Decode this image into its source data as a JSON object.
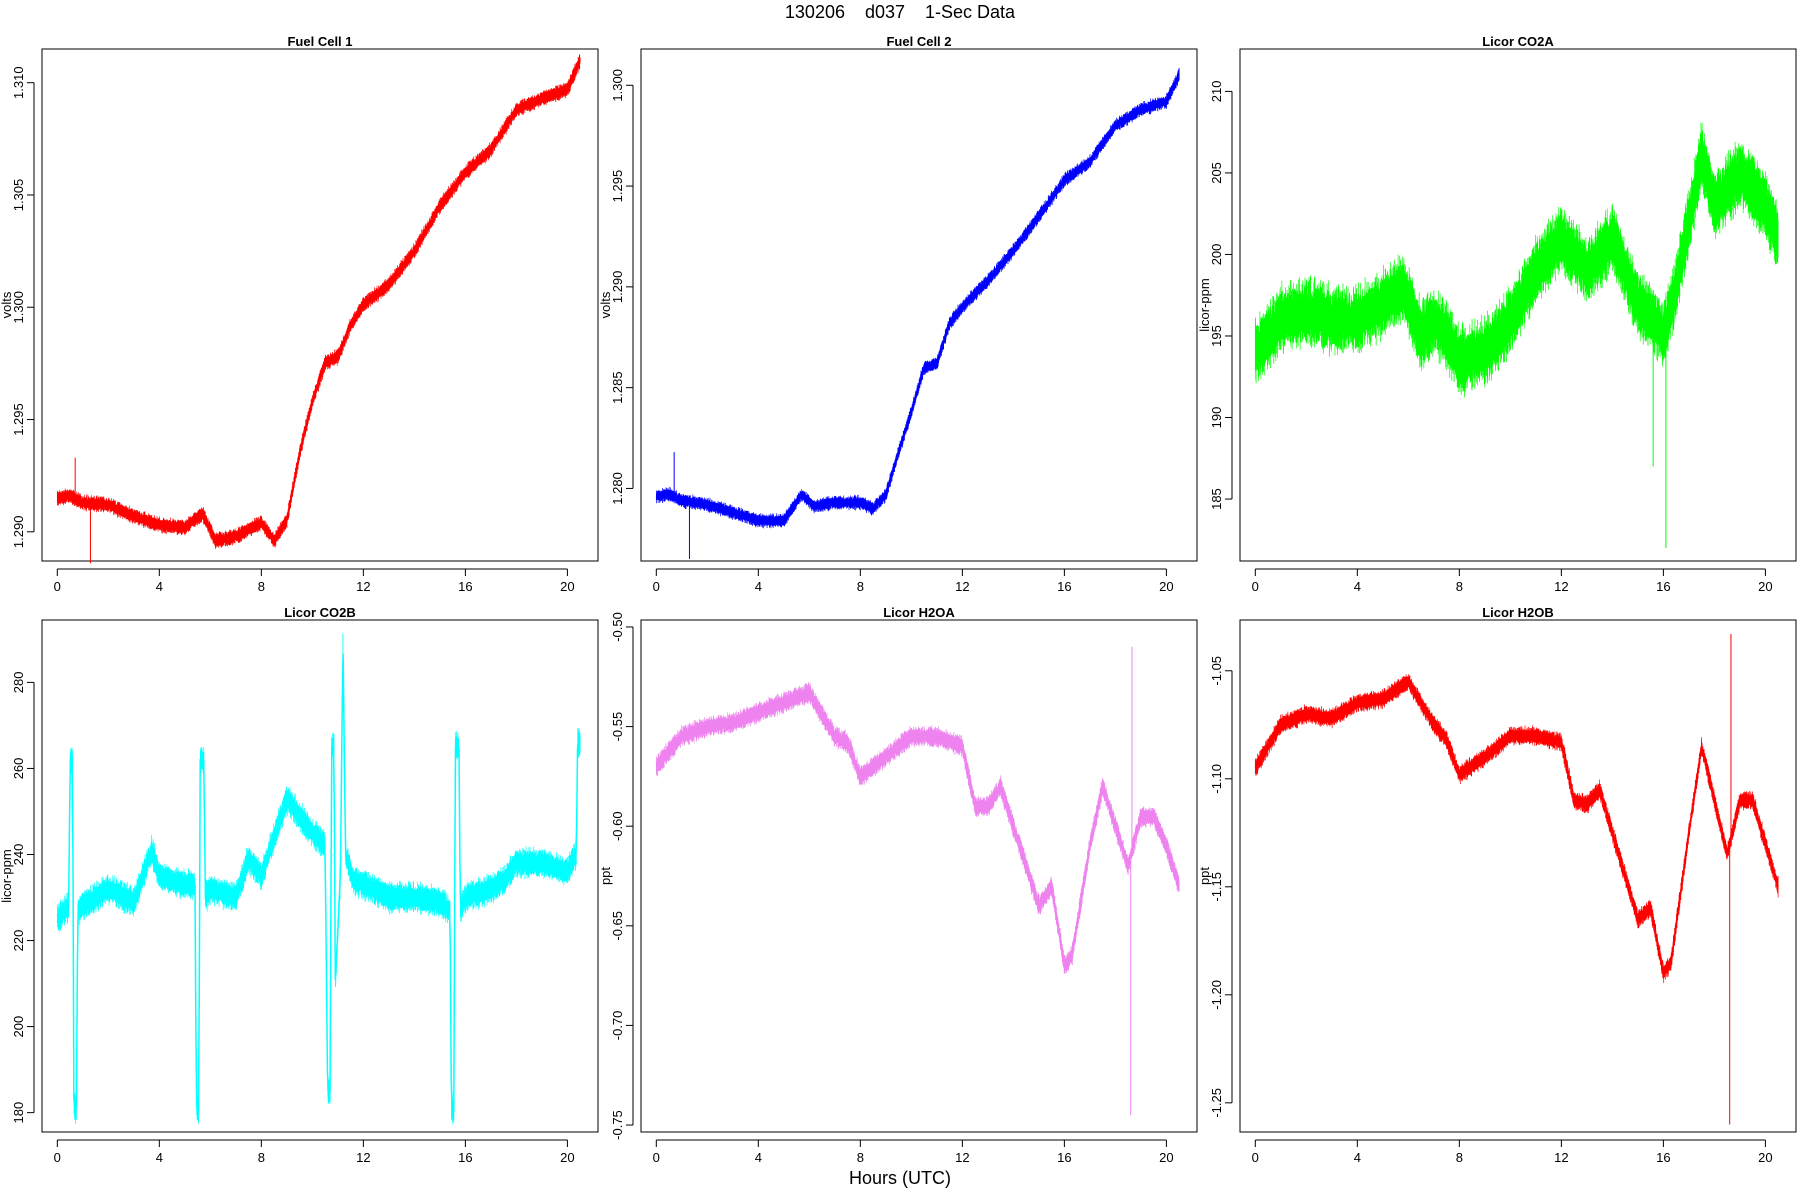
{
  "figure": {
    "title": "130206    d037    1-Sec Data",
    "xlabel": "Hours (UTC)"
  },
  "chart_data": [
    {
      "type": "line",
      "title": "Fuel Cell 1",
      "ylabel": "volts",
      "color": "#ff0000",
      "xlim": [
        -0.6,
        21.2
      ],
      "ylim": [
        1.2887,
        1.3115
      ],
      "xticks": [
        0,
        4,
        8,
        12,
        16,
        20
      ],
      "yticks": [
        1.29,
        1.295,
        1.3,
        1.305,
        1.31
      ],
      "ytick_labels": [
        "1.290",
        "1.295",
        "1.300",
        "1.305",
        "1.310"
      ],
      "noise": 0.0004,
      "series": [
        {
          "x": [
            0,
            0.5,
            1,
            2,
            3,
            4,
            5,
            5.7,
            6.2,
            7,
            8,
            8.5,
            9,
            9.5,
            10,
            10.5,
            11,
            11.5,
            12,
            13,
            14,
            15,
            16,
            17,
            18,
            19,
            20,
            20.5
          ],
          "y": [
            1.2915,
            1.2916,
            1.2913,
            1.2912,
            1.2907,
            1.2903,
            1.2902,
            1.2908,
            1.2896,
            1.2898,
            1.2904,
            1.2896,
            1.2905,
            1.2935,
            1.2958,
            1.2975,
            1.2978,
            1.2992,
            1.3001,
            1.301,
            1.3025,
            1.3045,
            1.306,
            1.307,
            1.3088,
            1.3093,
            1.3097,
            1.311
          ]
        }
      ],
      "spikes": [
        {
          "x": 1.3,
          "y": 1.2886
        },
        {
          "x": 0.7,
          "y": 1.2933
        }
      ]
    },
    {
      "type": "line",
      "title": "Fuel Cell 2",
      "ylabel": "volts",
      "color": "#0000ff",
      "xlim": [
        -0.6,
        21.2
      ],
      "ylim": [
        1.2764,
        1.3018
      ],
      "xticks": [
        0,
        4,
        8,
        12,
        16,
        20
      ],
      "yticks": [
        1.28,
        1.285,
        1.29,
        1.295,
        1.3
      ],
      "ytick_labels": [
        "1.280",
        "1.285",
        "1.290",
        "1.295",
        "1.300"
      ],
      "noise": 0.0004,
      "series": [
        {
          "x": [
            0,
            0.5,
            1,
            2,
            3,
            4,
            5,
            5.7,
            6.2,
            7,
            8,
            8.5,
            9,
            9.5,
            10,
            10.5,
            11,
            11.5,
            12,
            13,
            14,
            15,
            16,
            17,
            18,
            19,
            20,
            20.5
          ],
          "y": [
            1.2796,
            1.2797,
            1.2794,
            1.2792,
            1.2788,
            1.2784,
            1.2784,
            1.2797,
            1.2791,
            1.2793,
            1.2793,
            1.279,
            1.2797,
            1.2818,
            1.2838,
            1.286,
            1.2862,
            1.2882,
            1.289,
            1.2903,
            1.2918,
            1.2935,
            1.2953,
            1.2962,
            1.298,
            1.2988,
            1.2992,
            1.3005
          ]
        }
      ],
      "spikes": [
        {
          "x": 1.3,
          "y": 1.2765
        },
        {
          "x": 0.7,
          "y": 1.2818
        }
      ]
    },
    {
      "type": "line",
      "title": "Licor CO2A",
      "ylabel": "licor-ppm",
      "color": "#00ff00",
      "xlim": [
        -0.6,
        21.2
      ],
      "ylim": [
        181.2,
        212.6
      ],
      "xticks": [
        0,
        4,
        8,
        12,
        16,
        20
      ],
      "yticks": [
        185,
        190,
        195,
        200,
        205,
        210
      ],
      "ytick_labels": [
        "185",
        "190",
        "195",
        "200",
        "205",
        "210"
      ],
      "noise": 2.4,
      "series": [
        {
          "x": [
            0,
            1,
            2,
            3,
            4,
            5,
            5.8,
            6.5,
            7,
            7.5,
            8,
            9,
            10,
            11,
            12,
            13,
            14,
            15,
            15.6,
            16,
            16.5,
            17,
            17.5,
            18,
            19,
            20,
            20.5
          ],
          "y": [
            194,
            196,
            196.5,
            196,
            196,
            197,
            198,
            195,
            196,
            195,
            193.5,
            194,
            196,
            199,
            201,
            199,
            201,
            197,
            196,
            195,
            198,
            202,
            206,
            203,
            205,
            203,
            201
          ]
        }
      ],
      "spikes": [
        {
          "x": 16.1,
          "y": 182
        },
        {
          "x": 15.6,
          "y": 187
        }
      ]
    },
    {
      "type": "line",
      "title": "Licor CO2B",
      "ylabel": "licor-ppm",
      "color": "#00ffff",
      "xlim": [
        -0.6,
        21.2
      ],
      "ylim": [
        175.5,
        294.5
      ],
      "xticks": [
        0,
        4,
        8,
        12,
        16,
        20
      ],
      "yticks": [
        180,
        200,
        220,
        240,
        260,
        280
      ],
      "ytick_labels": [
        "180",
        "200",
        "220",
        "240",
        "260",
        "280"
      ],
      "noise": 4,
      "series": [
        {
          "x": [
            0,
            0.45,
            0.5,
            0.6,
            0.65,
            0.75,
            0.8,
            1,
            2,
            3,
            3.7,
            4,
            5,
            5.4,
            5.45,
            5.55,
            5.6,
            5.75,
            5.8,
            6,
            7,
            7.5,
            8,
            8.5,
            9,
            9.5,
            10,
            10.5,
            10.6,
            10.7,
            10.75,
            10.85,
            10.9,
            11.1,
            11.2,
            11.3,
            11.6,
            12,
            13,
            14,
            15,
            15.4,
            15.45,
            15.55,
            15.6,
            15.75,
            15.8,
            16,
            17,
            17.5,
            18,
            19,
            20,
            20.35,
            20.4,
            20.5
          ],
          "y": [
            225,
            228,
            262,
            262,
            182,
            180,
            227,
            228,
            232,
            229,
            241,
            235,
            233,
            233,
            182,
            180,
            262,
            262,
            230,
            232,
            230,
            239,
            235,
            244,
            253,
            249,
            245,
            242,
            185,
            185,
            265,
            265,
            210,
            235,
            290,
            240,
            234,
            233,
            230,
            230,
            229,
            227,
            182,
            180,
            265,
            265,
            227,
            230,
            232,
            234,
            238,
            238,
            236,
            240,
            266,
            266
          ]
        }
      ],
      "spikes": []
    },
    {
      "type": "line",
      "title": "Licor H2OA",
      "ylabel": "ppt",
      "color": "#ee82ee",
      "xlim": [
        -0.6,
        21.2
      ],
      "ylim": [
        -0.7535,
        -0.4965
      ],
      "xticks": [
        0,
        4,
        8,
        12,
        16,
        20
      ],
      "yticks": [
        -0.75,
        -0.7,
        -0.65,
        -0.6,
        -0.55,
        -0.5
      ],
      "ytick_labels": [
        "-0.75",
        "-0.70",
        "-0.65",
        "-0.60",
        "-0.55",
        "-0.50"
      ],
      "noise": 0.006,
      "series": [
        {
          "x": [
            0,
            1,
            2,
            3,
            4,
            5,
            6,
            7,
            7.5,
            8,
            9,
            10,
            11,
            12,
            12.5,
            13,
            13.5,
            14,
            15,
            15.5,
            16,
            16.3,
            17,
            17.5,
            18,
            18.5,
            19,
            19.5,
            20,
            20.5
          ],
          "y": [
            -0.57,
            -0.555,
            -0.55,
            -0.548,
            -0.543,
            -0.538,
            -0.533,
            -0.555,
            -0.558,
            -0.575,
            -0.565,
            -0.555,
            -0.555,
            -0.56,
            -0.59,
            -0.59,
            -0.58,
            -0.6,
            -0.64,
            -0.63,
            -0.67,
            -0.665,
            -0.61,
            -0.58,
            -0.6,
            -0.62,
            -0.595,
            -0.595,
            -0.61,
            -0.63
          ]
        }
      ],
      "spikes": [
        {
          "x": 18.6,
          "y": -0.745
        },
        {
          "x": 18.65,
          "y": -0.51
        }
      ]
    },
    {
      "type": "line",
      "title": "Licor H2OB",
      "ylabel": "ppt",
      "color": "#ff0000",
      "xlim": [
        -0.6,
        21.2
      ],
      "ylim": [
        -1.2635,
        -1.0265
      ],
      "xticks": [
        0,
        4,
        8,
        12,
        16,
        20
      ],
      "yticks": [
        -1.25,
        -1.2,
        -1.15,
        -1.1,
        -1.05
      ],
      "ytick_labels": [
        "-1.25",
        "-1.20",
        "-1.15",
        "-1.10",
        "-1.05"
      ],
      "noise": 0.005,
      "series": [
        {
          "x": [
            0,
            1,
            2,
            3,
            4,
            5,
            6,
            7,
            7.5,
            8,
            9,
            10,
            11,
            12,
            12.5,
            13,
            13.5,
            14,
            15,
            15.5,
            16,
            16.3,
            17,
            17.5,
            18,
            18.5,
            19,
            19.5,
            20,
            20.5
          ],
          "y": [
            -1.095,
            -1.075,
            -1.07,
            -1.072,
            -1.065,
            -1.063,
            -1.055,
            -1.075,
            -1.082,
            -1.098,
            -1.09,
            -1.08,
            -1.08,
            -1.083,
            -1.11,
            -1.112,
            -1.105,
            -1.125,
            -1.165,
            -1.16,
            -1.19,
            -1.185,
            -1.125,
            -1.085,
            -1.11,
            -1.135,
            -1.11,
            -1.11,
            -1.13,
            -1.15
          ]
        }
      ],
      "spikes": [
        {
          "x": 18.6,
          "y": -1.26
        },
        {
          "x": 18.65,
          "y": -1.033
        }
      ]
    }
  ]
}
